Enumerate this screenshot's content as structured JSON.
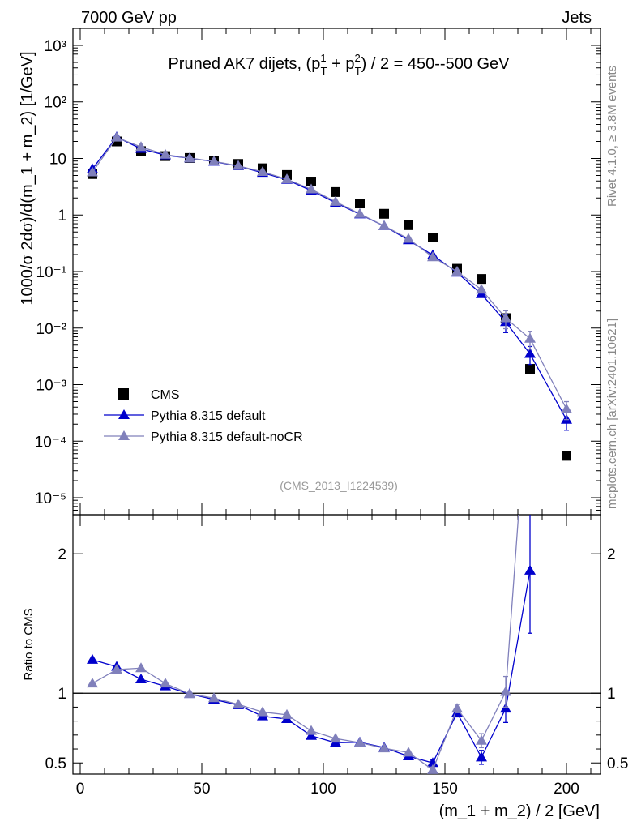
{
  "header": {
    "left": "7000 GeV pp",
    "right": "Jets",
    "side_top": "Rivet 4.1.0, ≥ 3.8M events",
    "side_bottom": "mcplots.cern.ch [arXiv:2401.10621]",
    "analysis_id": "(CMS_2013_I1224539)"
  },
  "chart_data": [
    {
      "type": "scatter",
      "panel": "main",
      "title": "Pruned AK7 dijets, (p_T^1 + p_T^2) / 2 = 450--500 GeV",
      "ylabel": "1000/σ  2dσ)/d(m_1 + m_2) [1/GeV]",
      "yscale": "log",
      "xlim": [
        -3,
        214
      ],
      "ylim": [
        5e-06,
        2000
      ],
      "y_tick_labels": [
        "10⁻⁵",
        "10⁻⁴",
        "10⁻³",
        "10⁻²",
        "10⁻¹",
        "1",
        "10",
        "10²",
        "10³"
      ],
      "legend_position": "bottom-left",
      "series": [
        {
          "name": "CMS",
          "marker": "square",
          "color": "#000000",
          "x": [
            5,
            15,
            25,
            35,
            45,
            55,
            65,
            75,
            85,
            95,
            105,
            115,
            125,
            135,
            145,
            155,
            165,
            175,
            185,
            200
          ],
          "y": [
            5.3,
            20,
            13.5,
            11,
            10.2,
            9.2,
            8.0,
            6.7,
            5.1,
            3.9,
            2.55,
            1.6,
            1.05,
            0.66,
            0.4,
            0.112,
            0.074,
            0.015,
            0.0019,
            5.5e-05
          ]
        },
        {
          "name": "Pythia 8.315 default",
          "marker": "triangle",
          "color": "#0000cc",
          "x": [
            5,
            15,
            25,
            35,
            45,
            55,
            65,
            75,
            85,
            95,
            105,
            115,
            125,
            135,
            145,
            155,
            165,
            175,
            185,
            200
          ],
          "y": [
            6.5,
            24,
            14.8,
            11.4,
            10.1,
            8.8,
            7.3,
            5.6,
            4.2,
            2.7,
            1.65,
            1.03,
            0.64,
            0.36,
            0.195,
            0.096,
            0.04,
            0.0128,
            0.0035,
            0.00024
          ]
        },
        {
          "name": "Pythia 8.315 default-noCR",
          "marker": "triangle",
          "color": "#8080bb",
          "x": [
            5,
            15,
            25,
            35,
            45,
            55,
            65,
            75,
            85,
            95,
            105,
            115,
            125,
            135,
            145,
            155,
            165,
            175,
            185,
            200
          ],
          "y": [
            5.7,
            23.5,
            16,
            11.7,
            10.1,
            8.9,
            7.4,
            5.8,
            4.3,
            2.85,
            1.72,
            1.05,
            0.64,
            0.38,
            0.18,
            0.1,
            0.048,
            0.015,
            0.0065,
            0.00037
          ]
        }
      ]
    },
    {
      "type": "line",
      "panel": "ratio",
      "ylabel": "Ratio to CMS",
      "xlabel": "(m_1 + m_2) / 2 [GeV]",
      "xlim": [
        -3,
        214
      ],
      "ylim": [
        0.42,
        2.28
      ],
      "y_ticks": [
        0.5,
        1,
        2
      ],
      "y_tick_labels": [
        "0.5",
        "1",
        "2"
      ],
      "x_ticks": [
        0,
        50,
        100,
        150,
        200
      ],
      "x_tick_labels": [
        "0",
        "50",
        "100",
        "150",
        "200"
      ],
      "reference_line": 1,
      "series": [
        {
          "name": "Pythia 8.315 default",
          "color": "#0000cc",
          "x": [
            5,
            15,
            25,
            35,
            45,
            55,
            65,
            75,
            85,
            95,
            105,
            115,
            125,
            135,
            145,
            155,
            165,
            175,
            185
          ],
          "y": [
            1.24,
            1.19,
            1.1,
            1.05,
            0.995,
            0.955,
            0.915,
            0.835,
            0.815,
            0.695,
            0.645,
            0.648,
            0.61,
            0.548,
            0.5,
            0.86,
            0.54,
            0.89,
            1.88
          ],
          "err": [
            0,
            0,
            0,
            0,
            0,
            0,
            0,
            0,
            0,
            0,
            0,
            0,
            0,
            0,
            0.02,
            0.03,
            0.05,
            0.1,
            0.45
          ]
        },
        {
          "name": "Pythia 8.315 default-noCR",
          "color": "#8080bb",
          "x": [
            5,
            15,
            25,
            35,
            45,
            55,
            65,
            75,
            85,
            95,
            105,
            115,
            125,
            135,
            145,
            155,
            165,
            175,
            185
          ],
          "y": [
            1.07,
            1.17,
            1.18,
            1.07,
            0.995,
            0.965,
            0.92,
            0.865,
            0.845,
            0.73,
            0.675,
            0.645,
            0.605,
            0.575,
            0.45,
            0.89,
            0.66,
            1.01,
            3.42
          ],
          "err": [
            0,
            0,
            0,
            0,
            0,
            0,
            0,
            0,
            0,
            0,
            0,
            0,
            0,
            0,
            0.02,
            0.03,
            0.05,
            0.11,
            0
          ]
        }
      ]
    }
  ]
}
